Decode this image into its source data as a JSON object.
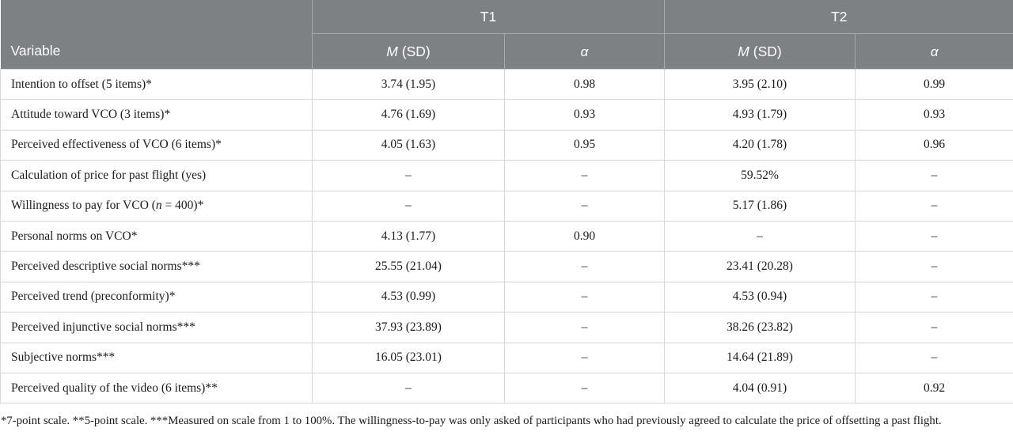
{
  "table": {
    "header": {
      "variable_label": "Variable",
      "t1_label": "T1",
      "t2_label": "T2",
      "m_label": "M",
      "sd_suffix": " (SD)",
      "alpha_label": "α"
    },
    "rows": [
      {
        "label": "Intention to offset (5 items)*",
        "t1_m": "3.74 (1.95)",
        "t1_alpha": "0.98",
        "t2_m": "3.95 (2.10)",
        "t2_alpha": "0.99"
      },
      {
        "label": "Attitude toward VCO (3 items)*",
        "t1_m": "4.76 (1.69)",
        "t1_alpha": "0.93",
        "t2_m": "4.93 (1.79)",
        "t2_alpha": "0.93"
      },
      {
        "label": "Perceived effectiveness of VCO (6 items)*",
        "t1_m": "4.05 (1.63)",
        "t1_alpha": "0.95",
        "t2_m": "4.20 (1.78)",
        "t2_alpha": "0.96"
      },
      {
        "label": "Calculation of price for past flight (yes)",
        "t1_m": "–",
        "t1_alpha": "–",
        "t2_m": "59.52%",
        "t2_alpha": "–"
      },
      {
        "label_pre": "Willingness to pay for VCO (",
        "label_italic": "n",
        "label_post": " = 400)*",
        "t1_m": "–",
        "t1_alpha": "–",
        "t2_m": "5.17 (1.86)",
        "t2_alpha": "–"
      },
      {
        "label": "Personal norms on VCO*",
        "t1_m": "4.13 (1.77)",
        "t1_alpha": "0.90",
        "t2_m": "–",
        "t2_alpha": "–"
      },
      {
        "label": "Perceived descriptive social norms***",
        "t1_m": "25.55 (21.04)",
        "t1_alpha": "–",
        "t2_m": "23.41 (20.28)",
        "t2_alpha": "–"
      },
      {
        "label": "Perceived trend (preconformity)*",
        "t1_m": "4.53 (0.99)",
        "t1_alpha": "–",
        "t2_m": "4.53 (0.94)",
        "t2_alpha": "–"
      },
      {
        "label": "Perceived injunctive social norms***",
        "t1_m": "37.93 (23.89)",
        "t1_alpha": "–",
        "t2_m": "38.26 (23.82)",
        "t2_alpha": "–"
      },
      {
        "label": "Subjective norms***",
        "t1_m": "16.05 (23.01)",
        "t1_alpha": "–",
        "t2_m": "14.64 (21.89)",
        "t2_alpha": "–"
      },
      {
        "label": "Perceived quality of the video (6 items)**",
        "t1_m": "–",
        "t1_alpha": "–",
        "t2_m": "4.04 (0.91)",
        "t2_alpha": "0.92"
      }
    ],
    "footnote": "*7-point scale. **5-point scale. ***Measured on scale from 1 to 100%. The willingness-to-pay was only asked of participants who had previously agreed to calculate the price of offsetting a past flight."
  }
}
